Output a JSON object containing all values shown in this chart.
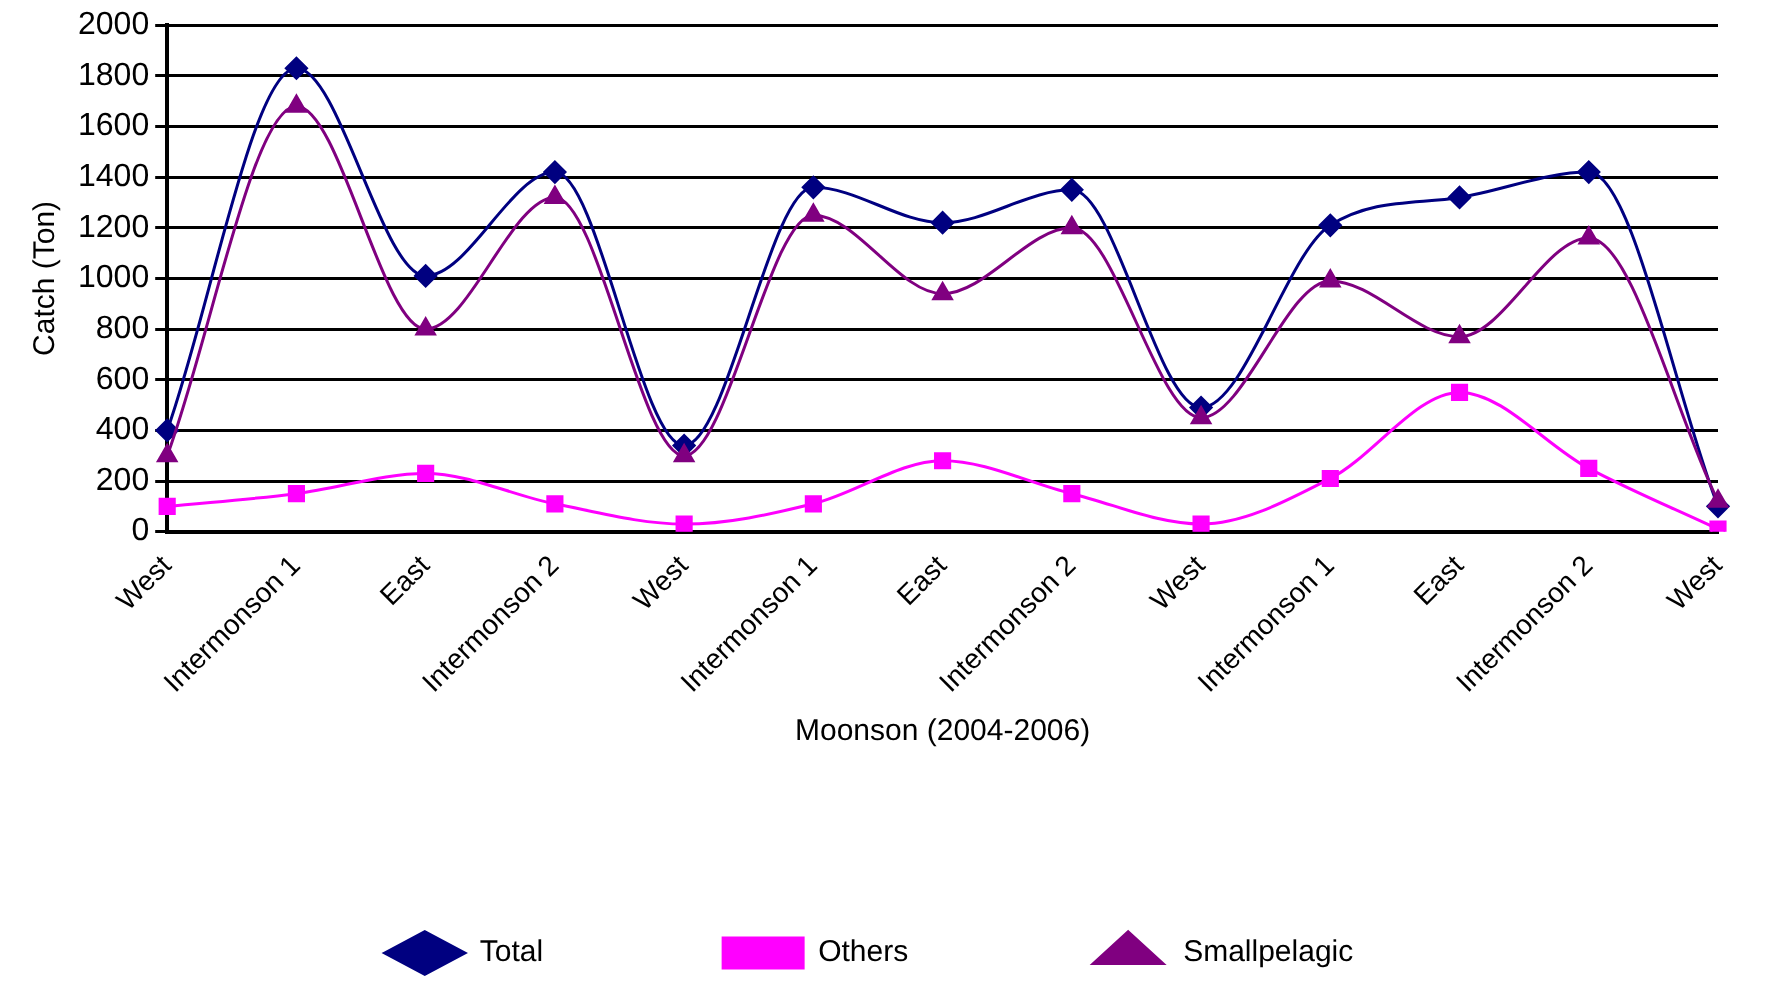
{
  "chart_data": {
    "type": "line",
    "xlabel": "Moonson (2004-2006)",
    "ylabel": "Catch (Ton)",
    "categories": [
      "West",
      "Intermonson 1",
      "East",
      "Intermonson 2",
      "West",
      "Intermonson 1",
      "East",
      "Intermonson 2",
      "West",
      "Intermonson 1",
      "East",
      "Intermonson 2",
      "West"
    ],
    "series": [
      {
        "name": "Total",
        "color": "#000080",
        "marker": "diamond",
        "values": [
          400,
          1830,
          1010,
          1420,
          340,
          1360,
          1220,
          1350,
          490,
          1210,
          1320,
          1420,
          100
        ]
      },
      {
        "name": "Others",
        "color": "#ff00ff",
        "marker": "square",
        "values": [
          100,
          150,
          230,
          110,
          30,
          110,
          280,
          150,
          30,
          210,
          550,
          250,
          10
        ]
      },
      {
        "name": "Smallpelagic",
        "color": "#800080",
        "marker": "triangle",
        "values": [
          300,
          1680,
          800,
          1320,
          300,
          1250,
          940,
          1200,
          450,
          990,
          770,
          1160,
          120
        ]
      }
    ],
    "ylim": [
      0,
      2000
    ],
    "yticks": [
      0,
      200,
      400,
      600,
      800,
      1000,
      1200,
      1400,
      1600,
      1800,
      2000
    ],
    "grid": "y",
    "legend": "bottom"
  }
}
